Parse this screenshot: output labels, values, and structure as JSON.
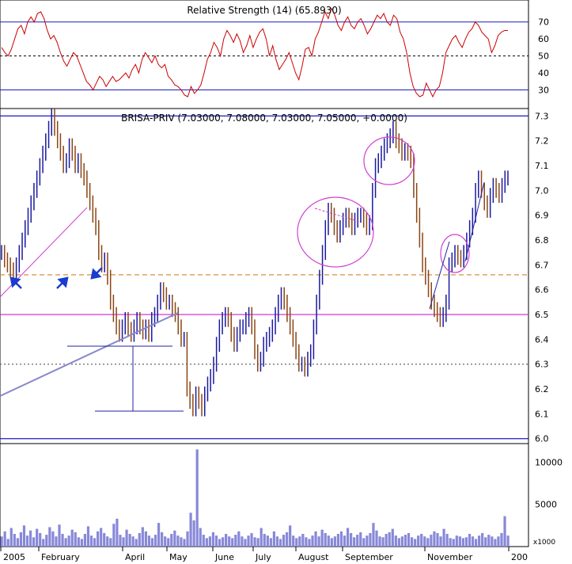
{
  "chart_data": [
    {
      "type": "line",
      "title": "Relative Strength (14) (65.8930)",
      "yticks": [
        30,
        40,
        50,
        60,
        70
      ],
      "ylim": [
        20,
        82
      ],
      "reference_lines": [
        30,
        50,
        70
      ],
      "series": [
        {
          "values": [
            55,
            52,
            50,
            54,
            60,
            66,
            68,
            63,
            70,
            73,
            70,
            75,
            76,
            72,
            65,
            60,
            62,
            58,
            52,
            47,
            44,
            48,
            52,
            50,
            45,
            40,
            35,
            33,
            30,
            34,
            38,
            36,
            32,
            35,
            38,
            35,
            36,
            38,
            40,
            37,
            42,
            45,
            40,
            48,
            52,
            49,
            46,
            50,
            45,
            43,
            45,
            38,
            36,
            33,
            32,
            30,
            27,
            26,
            32,
            28,
            30,
            33,
            40,
            48,
            52,
            58,
            55,
            50,
            60,
            65,
            62,
            58,
            63,
            59,
            52,
            56,
            62,
            55,
            60,
            64,
            66,
            60,
            50,
            56,
            48,
            42,
            45,
            48,
            52,
            46,
            40,
            36,
            44,
            54,
            55,
            50,
            60,
            64,
            70,
            76,
            72,
            78,
            74,
            68,
            65,
            70,
            73,
            68,
            66,
            70,
            72,
            68,
            63,
            66,
            70,
            74,
            72,
            75,
            70,
            68,
            74,
            72,
            64,
            60,
            52,
            40,
            32,
            28,
            26,
            27,
            34,
            30,
            26,
            30,
            32,
            40,
            52,
            56,
            60,
            62,
            58,
            55,
            60,
            64,
            66,
            70,
            68,
            64,
            62,
            60,
            52,
            56,
            62,
            64,
            65,
            65
          ]
        }
      ]
    },
    {
      "type": "candlestick",
      "title": "BRISA-PRIV (7.03000, 7.08000, 7.03000, 7.05000, +0.0000)",
      "yticks": [
        6.0,
        6.1,
        6.2,
        6.3,
        6.4,
        6.5,
        6.6,
        6.7,
        6.8,
        6.9,
        7.0,
        7.1,
        7.2,
        7.3
      ],
      "ylim": [
        5.98,
        7.33
      ],
      "close": [
        6.75,
        6.72,
        6.7,
        6.68,
        6.65,
        6.7,
        6.75,
        6.8,
        6.85,
        6.9,
        6.95,
        7.0,
        7.05,
        7.1,
        7.15,
        7.2,
        7.25,
        7.3,
        7.25,
        7.2,
        7.15,
        7.1,
        7.12,
        7.18,
        7.15,
        7.1,
        7.12,
        7.08,
        7.05,
        7.0,
        6.95,
        6.9,
        6.85,
        6.75,
        6.7,
        6.72,
        6.65,
        6.55,
        6.5,
        6.45,
        6.42,
        6.45,
        6.48,
        6.44,
        6.42,
        6.45,
        6.48,
        6.45,
        6.43,
        6.45,
        6.42,
        6.48,
        6.5,
        6.55,
        6.6,
        6.58,
        6.55,
        6.55,
        6.52,
        6.5,
        6.45,
        6.4,
        6.4,
        6.2,
        6.15,
        6.12,
        6.18,
        6.15,
        6.12,
        6.18,
        6.22,
        6.25,
        6.3,
        6.38,
        6.45,
        6.48,
        6.5,
        6.48,
        6.42,
        6.38,
        6.42,
        6.45,
        6.45,
        6.48,
        6.5,
        6.45,
        6.35,
        6.3,
        6.32,
        6.38,
        6.4,
        6.42,
        6.45,
        6.5,
        6.55,
        6.58,
        6.55,
        6.5,
        6.45,
        6.4,
        6.35,
        6.3,
        6.3,
        6.28,
        6.32,
        6.35,
        6.45,
        6.55,
        6.65,
        6.75,
        6.85,
        6.92,
        6.9,
        6.85,
        6.82,
        6.85,
        6.88,
        6.9,
        6.88,
        6.85,
        6.88,
        6.9,
        6.9,
        6.88,
        6.85,
        6.87,
        7.0,
        7.1,
        7.12,
        7.15,
        7.18,
        7.2,
        7.22,
        7.25,
        7.2,
        7.18,
        7.15,
        7.16,
        7.15,
        7.12,
        7.0,
        6.9,
        6.8,
        6.7,
        6.65,
        6.6,
        6.55,
        6.52,
        6.5,
        6.48,
        6.5,
        6.55,
        6.7,
        6.72,
        6.75,
        6.73,
        6.72,
        6.75,
        6.8,
        6.85,
        6.9,
        7.0,
        7.05,
        7.0,
        6.95,
        6.92,
        6.98,
        7.02,
        7.0,
        6.98,
        7.02,
        7.05,
        7.05
      ]
    },
    {
      "type": "bar",
      "ylabel": "x1000",
      "yticks": [
        5000,
        10000
      ],
      "ylim": [
        0,
        12000
      ],
      "values": [
        1200,
        1800,
        900,
        2200,
        1500,
        1000,
        1700,
        2500,
        1300,
        1900,
        1100,
        2100,
        1600,
        900,
        1400,
        2300,
        1800,
        1200,
        2600,
        1500,
        1000,
        1300,
        2000,
        1700,
        1100,
        900,
        1500,
        2400,
        1300,
        1000,
        1800,
        2200,
        1600,
        1200,
        1000,
        2700,
        3300,
        1400,
        1100,
        2000,
        1500,
        1200,
        900,
        1600,
        2300,
        1800,
        1300,
        1000,
        1400,
        2800,
        1700,
        1200,
        1000,
        1500,
        1900,
        1300,
        1100,
        900,
        1800,
        4000,
        3100,
        11500,
        2200,
        1400,
        1000,
        1200,
        1700,
        1300,
        900,
        1100,
        1500,
        1200,
        1000,
        1400,
        1800,
        1200,
        900,
        1300,
        1600,
        1100,
        1000,
        2200,
        1500,
        1300,
        1000,
        1800,
        1200,
        900,
        1400,
        1700,
        2500,
        1300,
        1000,
        1200,
        1500,
        1100,
        900,
        1300,
        1800,
        1200,
        2000,
        1600,
        1300,
        1000,
        1200,
        1500,
        1800,
        1300,
        2200,
        1600,
        1100,
        1400,
        1700,
        1000,
        1300,
        1600,
        2800,
        1900,
        1200,
        1100,
        1500,
        1700,
        2100,
        1300,
        1000,
        1200,
        1400,
        1600,
        1100,
        900,
        1300,
        1500,
        1200,
        1000,
        1400,
        1800,
        1600,
        1200,
        2100,
        1500,
        1000,
        900,
        1300,
        1200,
        1000,
        1100,
        1500,
        1200,
        900,
        1300,
        1600,
        1100,
        1400,
        1200,
        900,
        1200,
        1600,
        3600,
        1300
      ]
    }
  ],
  "x_axis": {
    "labels": [
      "2005",
      "February",
      "April",
      "May",
      "June",
      "July",
      "August",
      "September",
      "November",
      "200"
    ]
  }
}
